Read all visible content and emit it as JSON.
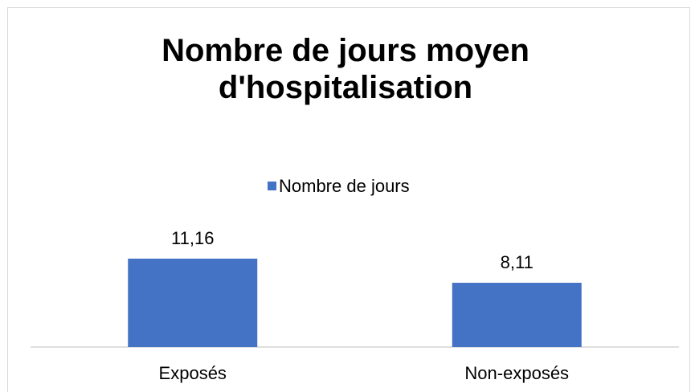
{
  "chart_data": {
    "type": "bar",
    "title": "Nombre de jours moyen d'hospitalisation",
    "categories": [
      "Exposés",
      "Non-exposés"
    ],
    "series": [
      {
        "name": "Nombre de jours",
        "color": "#4472c4",
        "values": [
          11.16,
          8.11
        ],
        "value_labels": [
          "11,16",
          "8,11"
        ]
      }
    ],
    "legend": "top"
  }
}
